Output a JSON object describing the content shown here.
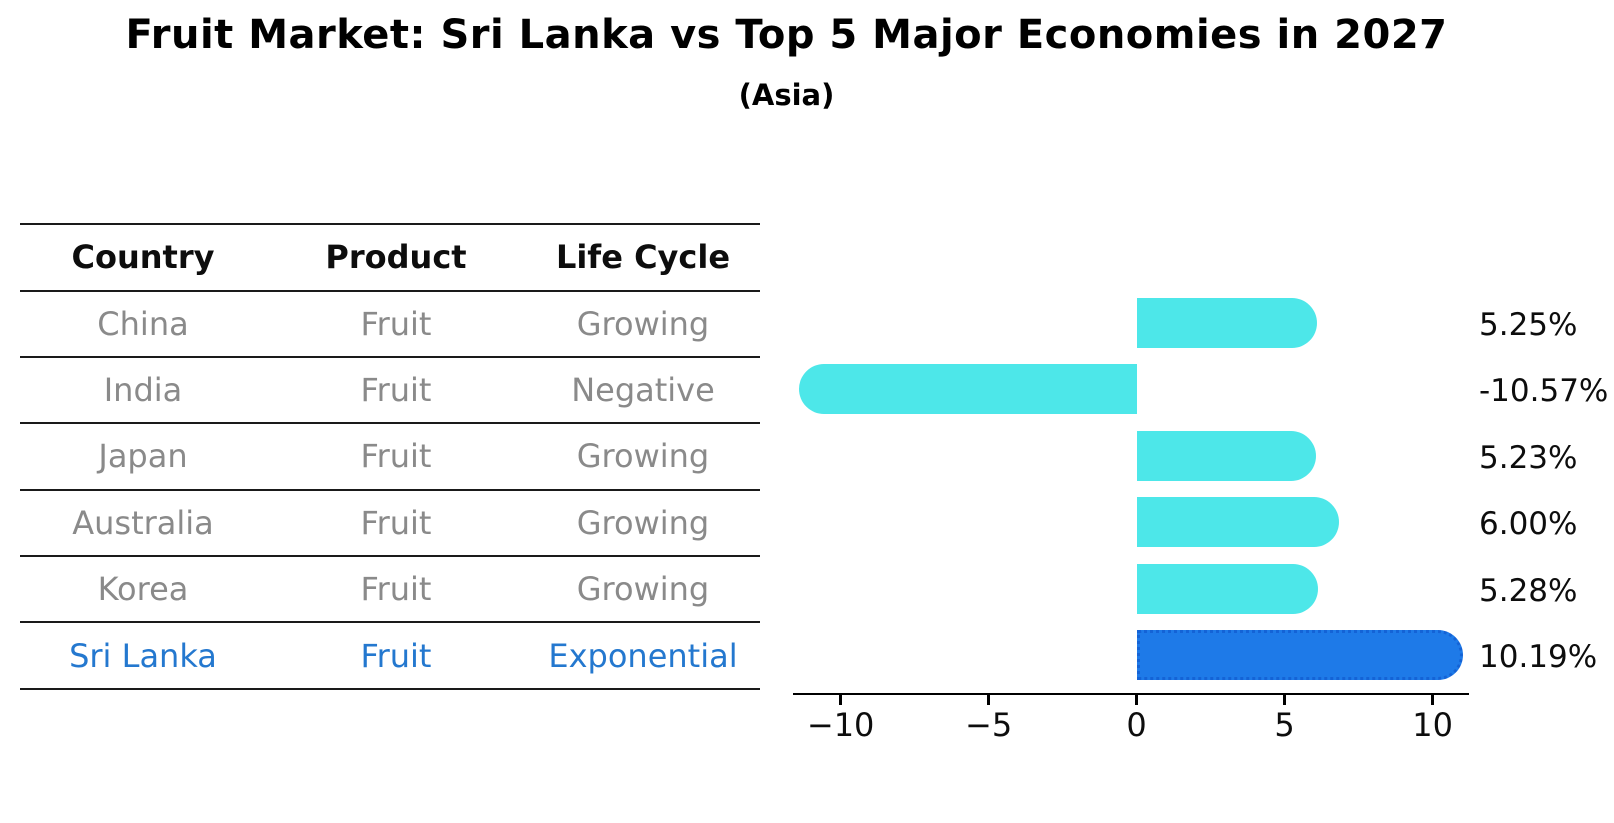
{
  "title": "Fruit Market: Sri Lanka vs Top 5 Major Economies in 2027",
  "subtitle": "(Asia)",
  "table": {
    "headers": [
      "Country",
      "Product",
      "Life Cycle"
    ],
    "rows": [
      {
        "country": "China",
        "product": "Fruit",
        "life_cycle": "Growing",
        "highlight": false
      },
      {
        "country": "India",
        "product": "Fruit",
        "life_cycle": "Negative",
        "highlight": false
      },
      {
        "country": "Japan",
        "product": "Fruit",
        "life_cycle": "Growing",
        "highlight": false
      },
      {
        "country": "Australia",
        "product": "Fruit",
        "life_cycle": "Growing",
        "highlight": false
      },
      {
        "country": "Korea",
        "product": "Fruit",
        "life_cycle": "Growing",
        "highlight": false
      },
      {
        "country": "Sri Lanka",
        "product": "Fruit",
        "life_cycle": "Exponential",
        "highlight": true
      }
    ]
  },
  "chart_data": {
    "type": "bar",
    "orientation": "horizontal",
    "title": "Fruit Market: Sri Lanka vs Top 5 Major Economies in 2027 (Asia)",
    "categories": [
      "China",
      "India",
      "Japan",
      "Australia",
      "Korea",
      "Sri Lanka"
    ],
    "values": [
      5.25,
      -10.57,
      5.23,
      6.0,
      5.28,
      10.19
    ],
    "value_labels": [
      "5.25%",
      "-10.57%",
      "5.23%",
      "6.00%",
      "5.28%",
      "10.19%"
    ],
    "xlim": [
      -11.61,
      11.23
    ],
    "xtick_values": [
      -10,
      -5,
      0,
      5,
      10
    ],
    "xtick_labels": [
      "−10",
      "−5",
      "0",
      "5",
      "10"
    ],
    "grid": false,
    "legend": null,
    "highlight_index": 5,
    "bar_color": "#4de7e9",
    "highlight_bar_color": "#1e7ae8"
  },
  "colors": {
    "bar_cyan": "#4de7e9",
    "bar_blue": "#1e7ae8",
    "bar_blue_border": "#1463d6",
    "table_line": "#1a1a1a",
    "body_gray": "#8a8a8a",
    "highlight_text": "#2478cf"
  }
}
